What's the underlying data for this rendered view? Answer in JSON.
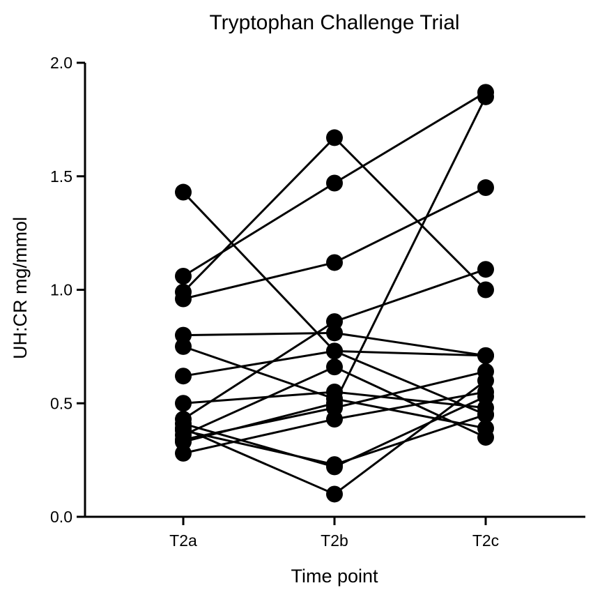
{
  "chart_data": {
    "type": "line",
    "title": "Tryptophan Challenge Trial",
    "xlabel": "Time point",
    "ylabel": "UH:CR mg/mmol",
    "categories": [
      "T2a",
      "T2b",
      "T2c"
    ],
    "ylim": [
      0,
      2
    ],
    "yticks": [
      "0.0",
      "0.5",
      "1.0",
      "1.5",
      "2.0"
    ],
    "grid": false,
    "legend": "none",
    "marker": "filled-circle",
    "line_color": "#000000",
    "series": [
      {
        "values": [
          1.43,
          0.73,
          0.45
        ]
      },
      {
        "values": [
          1.06,
          1.47,
          1.87
        ]
      },
      {
        "values": [
          0.99,
          1.67,
          1.0
        ]
      },
      {
        "values": [
          0.96,
          1.12,
          1.45
        ]
      },
      {
        "values": [
          0.8,
          0.81,
          0.71
        ]
      },
      {
        "values": [
          0.75,
          0.52,
          0.39
        ]
      },
      {
        "values": [
          0.62,
          0.73,
          0.71
        ]
      },
      {
        "values": [
          0.5,
          0.55,
          0.48
        ]
      },
      {
        "values": [
          0.43,
          0.86,
          1.09
        ]
      },
      {
        "values": [
          0.41,
          0.22,
          0.53
        ]
      },
      {
        "values": [
          0.39,
          0.1,
          0.6
        ]
      },
      {
        "values": [
          0.36,
          0.66,
          0.35
        ]
      },
      {
        "values": [
          0.34,
          0.48,
          0.64
        ]
      },
      {
        "values": [
          0.28,
          0.43,
          0.55
        ]
      },
      {
        "values": [
          0.33,
          0.5,
          1.85
        ]
      },
      {
        "values": [
          0.38,
          0.23,
          0.45
        ]
      }
    ]
  }
}
